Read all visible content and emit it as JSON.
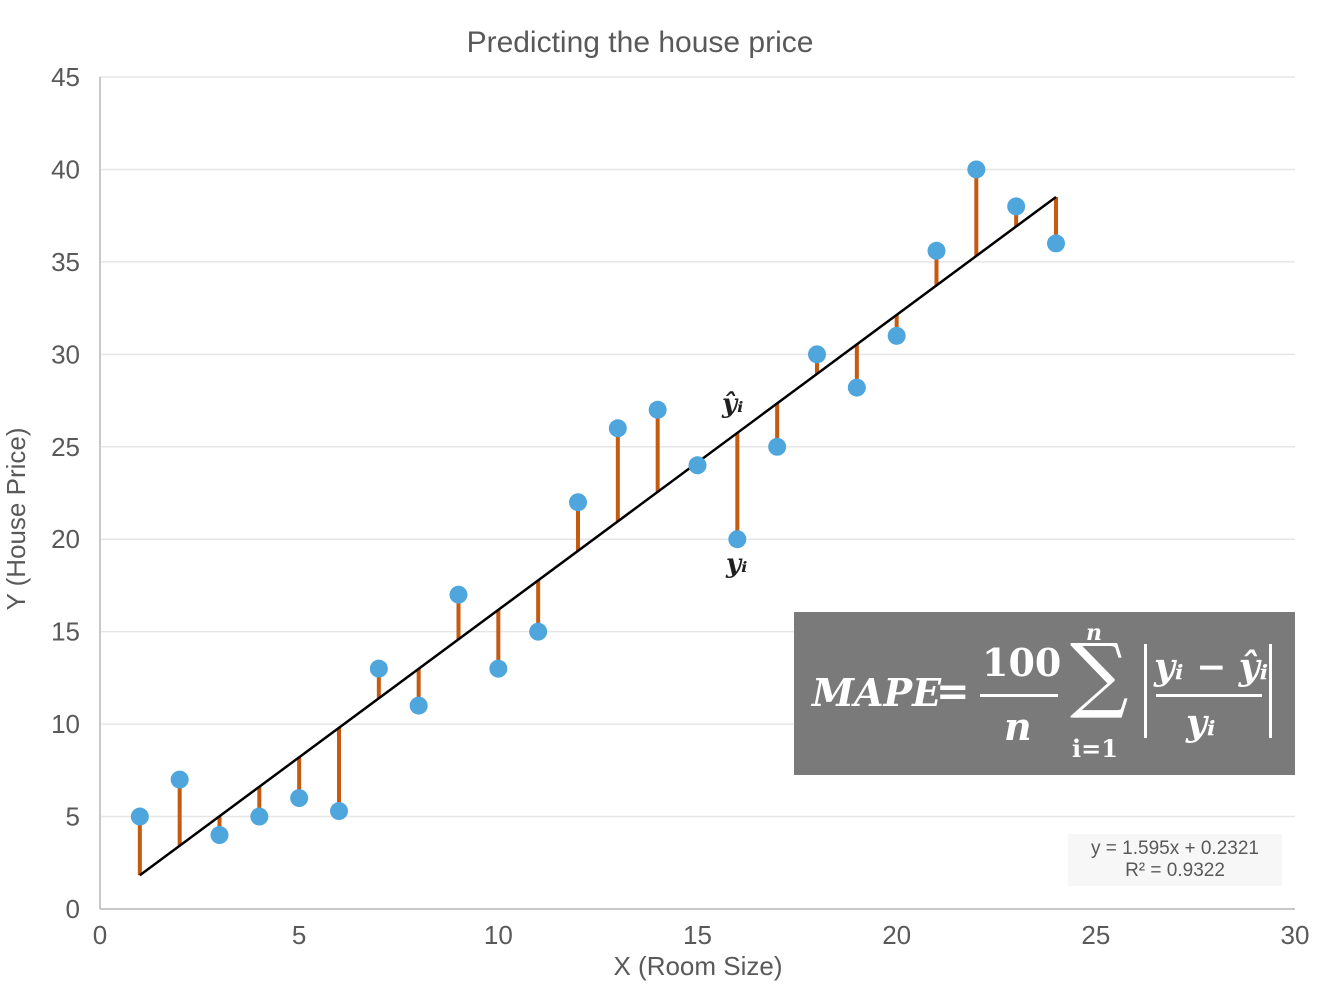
{
  "chart_data": {
    "type": "scatter",
    "title": "Predicting the house price",
    "xlabel": "X (Room Size)",
    "ylabel": "Y (House Price)",
    "xlim": [
      0,
      30
    ],
    "ylim": [
      0,
      45
    ],
    "xticks": [
      0,
      5,
      10,
      15,
      20,
      25,
      30
    ],
    "yticks": [
      0,
      5,
      10,
      15,
      20,
      25,
      30,
      35,
      40,
      45
    ],
    "grid": "horizontal",
    "points": {
      "x": [
        1,
        2,
        3,
        4,
        5,
        6,
        7,
        8,
        9,
        10,
        11,
        12,
        13,
        14,
        15,
        16,
        17,
        18,
        19,
        20,
        21,
        22,
        23,
        24
      ],
      "y": [
        5,
        7,
        4,
        5,
        6,
        5.3,
        13,
        11,
        17,
        13,
        15,
        22,
        26,
        27,
        24,
        20,
        25,
        30,
        28.2,
        31,
        35.6,
        40,
        38,
        36
      ]
    },
    "trendline": {
      "slope": 1.595,
      "intercept": 0.2321,
      "x_range": [
        1,
        24
      ],
      "equation": "y = 1.595x + 0.2321",
      "r_squared": "R² = 0.9322"
    },
    "annotations": {
      "predicted": "ŷᵢ",
      "actual": "yᵢ"
    },
    "formula": {
      "lhs": "MAPE",
      "equals": "=",
      "numerator": "100",
      "denominator": "n",
      "sum_symbol": "∑",
      "sum_top": "n",
      "sum_bottom": "i=1",
      "frac_numerator": "yᵢ − ŷᵢ",
      "frac_denominator": "yᵢ"
    },
    "colors": {
      "points": "#4ea6dc",
      "residuals": "#c55a11",
      "trendline": "#000000",
      "grid": "#e6e6e6",
      "formula_box": "#7a7a7a"
    }
  }
}
